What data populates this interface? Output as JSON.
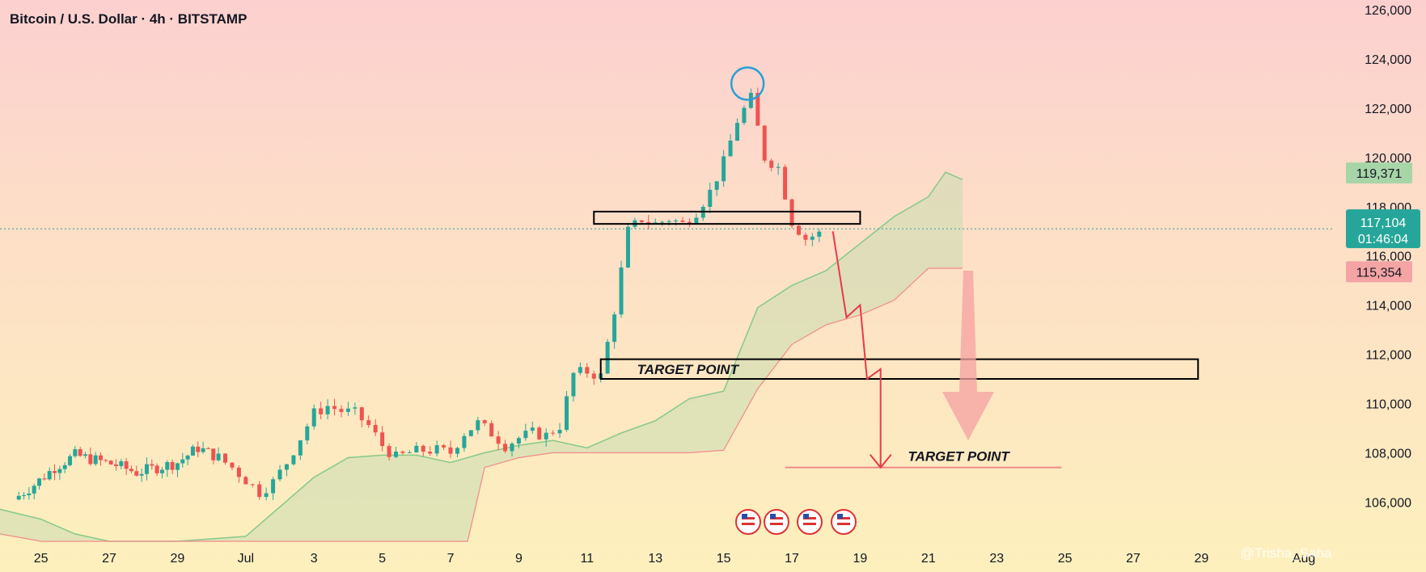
{
  "chart_data": {
    "type": "candlestick",
    "title": "Bitcoin / U.S. Dollar · 4h · BITSTAMP",
    "y_ticks": [
      106000,
      108000,
      110000,
      112000,
      114000,
      116000,
      118000,
      120000,
      122000,
      124000,
      126000
    ],
    "ylim": [
      104400,
      126400
    ],
    "x_ticks": [
      "25",
      "27",
      "29",
      "Jul",
      "3",
      "5",
      "7",
      "9",
      "11",
      "13",
      "15",
      "17",
      "19",
      "21",
      "23",
      "25",
      "27",
      "29",
      "Aug"
    ],
    "x_tick_days": [
      -6,
      -4,
      -2,
      0,
      2,
      4,
      6,
      8,
      10,
      12,
      14,
      16,
      18,
      20,
      22,
      24,
      26,
      28,
      31
    ],
    "xlim_days": [
      -7.2,
      31.9
    ],
    "candles_sampled": [
      [
        -6.8,
        106100
      ],
      [
        -6.2,
        106700
      ],
      [
        -5.6,
        107400
      ],
      [
        -5.0,
        107900
      ],
      [
        -4.4,
        107700
      ],
      [
        -3.8,
        107500
      ],
      [
        -3.2,
        107200
      ],
      [
        -2.6,
        107400
      ],
      [
        -2.0,
        107600
      ],
      [
        -1.4,
        108200
      ],
      [
        -0.8,
        107800
      ],
      [
        -0.4,
        107400
      ],
      [
        0.0,
        106900
      ],
      [
        0.4,
        106400
      ],
      [
        0.8,
        106800
      ],
      [
        1.2,
        107600
      ],
      [
        1.6,
        108600
      ],
      [
        2.0,
        109600
      ],
      [
        2.4,
        109900
      ],
      [
        2.8,
        109700
      ],
      [
        3.2,
        109600
      ],
      [
        3.6,
        109100
      ],
      [
        4.0,
        108300
      ],
      [
        4.4,
        107800
      ],
      [
        4.8,
        108000
      ],
      [
        5.2,
        108100
      ],
      [
        5.6,
        108100
      ],
      [
        6.0,
        108000
      ],
      [
        6.4,
        108800
      ],
      [
        6.8,
        109200
      ],
      [
        7.2,
        108800
      ],
      [
        7.6,
        108300
      ],
      [
        8.0,
        108600
      ],
      [
        8.4,
        108800
      ],
      [
        8.8,
        108700
      ],
      [
        9.2,
        109100
      ],
      [
        9.6,
        111200
      ],
      [
        10.0,
        111300
      ],
      [
        10.4,
        111100
      ],
      [
        10.8,
        113800
      ],
      [
        11.2,
        117000
      ],
      [
        11.6,
        117500
      ],
      [
        12.0,
        117300
      ],
      [
        12.4,
        117500
      ],
      [
        12.8,
        117300
      ],
      [
        13.2,
        117800
      ],
      [
        13.6,
        118600
      ],
      [
        14.0,
        119800
      ],
      [
        14.4,
        121500
      ],
      [
        14.8,
        122400
      ],
      [
        15.2,
        120000
      ],
      [
        15.6,
        119600
      ],
      [
        16.0,
        117400
      ],
      [
        16.4,
        116700
      ],
      [
        16.8,
        116900
      ]
    ],
    "cloud_upper": [
      [
        -7.2,
        105700
      ],
      [
        -6,
        105300
      ],
      [
        -5,
        104700
      ],
      [
        -4,
        104400
      ],
      [
        -2,
        104400
      ],
      [
        0,
        104600
      ],
      [
        1,
        105800
      ],
      [
        2,
        107000
      ],
      [
        3,
        107800
      ],
      [
        4,
        107900
      ],
      [
        5,
        107900
      ],
      [
        6,
        107600
      ],
      [
        7,
        108000
      ],
      [
        8,
        108300
      ],
      [
        9,
        108500
      ],
      [
        10,
        108200
      ],
      [
        11,
        108800
      ],
      [
        12,
        109300
      ],
      [
        13,
        110200
      ],
      [
        14,
        110500
      ],
      [
        15,
        113900
      ],
      [
        16,
        114800
      ],
      [
        17,
        115400
      ],
      [
        18,
        116500
      ],
      [
        19,
        117600
      ],
      [
        20,
        118400
      ],
      [
        20.5,
        119400
      ],
      [
        21,
        119100
      ]
    ],
    "cloud_lower": [
      [
        -7.2,
        104700
      ],
      [
        -6,
        104400
      ],
      [
        -5,
        104400
      ],
      [
        -4,
        104400
      ],
      [
        -2,
        104400
      ],
      [
        0,
        104400
      ],
      [
        2,
        104400
      ],
      [
        4,
        104400
      ],
      [
        6,
        104400
      ],
      [
        6.5,
        104400
      ],
      [
        7,
        107400
      ],
      [
        8,
        107800
      ],
      [
        9,
        108000
      ],
      [
        10,
        108000
      ],
      [
        11,
        108000
      ],
      [
        12,
        108000
      ],
      [
        13,
        108000
      ],
      [
        14,
        108100
      ],
      [
        15,
        110600
      ],
      [
        16,
        112400
      ],
      [
        17,
        113200
      ],
      [
        18,
        113600
      ],
      [
        19,
        114200
      ],
      [
        20,
        115500
      ],
      [
        21,
        115500
      ]
    ],
    "horizontal_lines": [
      {
        "label": "",
        "value": 117100
      }
    ],
    "annotations": {
      "resistance_zone": {
        "from_day": 10.2,
        "to_day": 18.0,
        "low": 117300,
        "high": 117800
      },
      "target_zone_1": {
        "from_day": 10.4,
        "to_day": 27.9,
        "low": 111000,
        "high": 111800,
        "label": "TARGET POINT"
      },
      "target_line_2": {
        "from_day": 15.8,
        "to_day": 23.9,
        "value": 107400,
        "label": "TARGET POINT"
      },
      "projection_path": [
        [
          17.2,
          117000
        ],
        [
          17.6,
          113500
        ],
        [
          18.0,
          114000
        ],
        [
          18.2,
          111000
        ],
        [
          18.6,
          111400
        ],
        [
          18.6,
          107400
        ]
      ],
      "peak_circle": {
        "day": 14.7,
        "value": 123000
      }
    },
    "price_badges": [
      {
        "value": "119,371",
        "color": "#a8d5a8",
        "text_color": "#131722"
      },
      {
        "value": "117,104",
        "sub": "01:46:04",
        "color": "#26a69a",
        "text_color": "#ffffff"
      },
      {
        "value": "115,354",
        "color": "#f4a4a4",
        "text_color": "#131722"
      }
    ],
    "colors": {
      "up": "#26a69a",
      "down": "#ef5350",
      "cloud_fill": "#c8ddb0",
      "cloud_line": "#86c98a",
      "annotation_red": "#e8394a",
      "circle": "#2a9fd8"
    },
    "watermark": "@Trisha_Saha"
  }
}
